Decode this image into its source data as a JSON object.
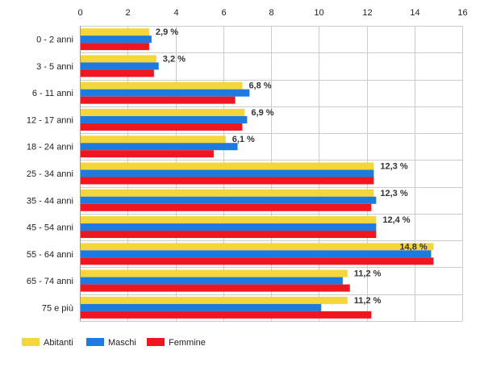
{
  "chart_data": {
    "type": "bar",
    "orientation": "horizontal",
    "title": "",
    "xlabel": "",
    "ylabel": "",
    "xlim": [
      0,
      16
    ],
    "x_ticks": [
      0,
      2,
      4,
      6,
      8,
      10,
      12,
      14,
      16
    ],
    "x_axis_position": "top",
    "grid": true,
    "legend_position": "bottom-left",
    "categories": [
      "0 - 2 anni",
      "3 - 5 anni",
      "6 - 11 anni",
      "12 - 17 anni",
      "18 - 24 anni",
      "25 - 34 anni",
      "35 - 44 anni",
      "45 - 54 anni",
      "55 - 64 anni",
      "65 - 74 anni",
      "75 e più"
    ],
    "series": [
      {
        "name": "Abitanti",
        "color": "#f5d63a",
        "values": [
          2.9,
          3.2,
          6.8,
          6.9,
          6.1,
          12.3,
          12.3,
          12.4,
          14.8,
          11.2,
          11.2
        ]
      },
      {
        "name": "Maschi",
        "color": "#1f7ae0",
        "values": [
          3.0,
          3.3,
          7.1,
          7.0,
          6.6,
          12.3,
          12.4,
          12.4,
          14.7,
          11.0,
          10.1
        ]
      },
      {
        "name": "Femmine",
        "color": "#f0161f",
        "values": [
          2.9,
          3.1,
          6.5,
          6.8,
          5.6,
          12.3,
          12.2,
          12.4,
          14.8,
          11.3,
          12.2
        ]
      }
    ],
    "data_labels": [
      "2,9 %",
      "3,2 %",
      "6,8 %",
      "6,9 %",
      "6,1 %",
      "12,3 %",
      "12,3 %",
      "12,4 %",
      "14,8 %",
      "11,2 %",
      "11,2 %"
    ]
  }
}
